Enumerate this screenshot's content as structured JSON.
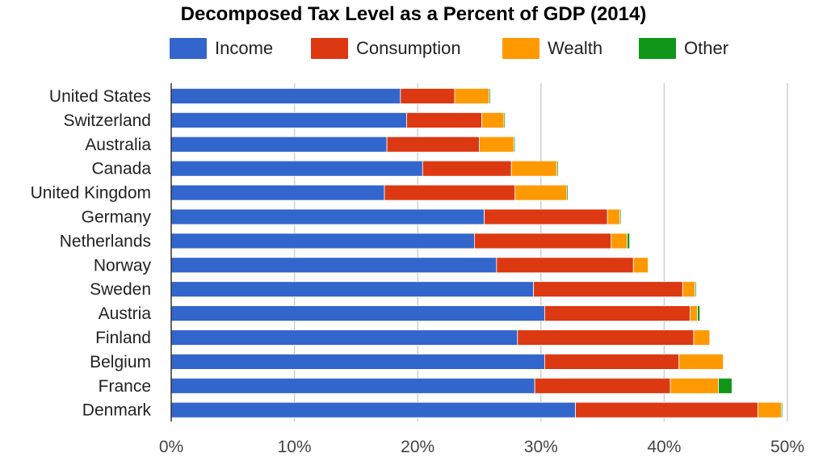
{
  "chart_data": {
    "type": "bar",
    "orientation": "horizontal",
    "stacked": true,
    "title": "Decomposed Tax Level as a Percent of GDP (2014)",
    "xlabel": "",
    "ylabel": "",
    "xlim": [
      0,
      50
    ],
    "ticks": [
      0,
      10,
      20,
      30,
      40,
      50
    ],
    "tick_labels": [
      "0%",
      "10%",
      "20%",
      "30%",
      "40%",
      "50%"
    ],
    "grid": true,
    "legend_position": "top",
    "categories": [
      "United States",
      "Switzerland",
      "Australia",
      "Canada",
      "United Kingdom",
      "Germany",
      "Netherlands",
      "Norway",
      "Sweden",
      "Austria",
      "Finland",
      "Belgium",
      "France",
      "Denmark"
    ],
    "series": [
      {
        "name": "Income",
        "color": "#3366cc",
        "values": [
          18.6,
          19.1,
          17.5,
          20.4,
          17.3,
          25.4,
          24.6,
          26.4,
          29.4,
          30.3,
          28.1,
          30.3,
          29.5,
          32.8
        ]
      },
      {
        "name": "Consumption",
        "color": "#dc3912",
        "values": [
          4.4,
          6.1,
          7.5,
          7.2,
          10.6,
          10.0,
          11.1,
          11.1,
          12.1,
          11.8,
          14.3,
          10.9,
          11.0,
          14.8
        ]
      },
      {
        "name": "Wealth",
        "color": "#ff9900",
        "values": [
          2.8,
          1.8,
          2.8,
          3.7,
          4.2,
          1.0,
          1.3,
          1.2,
          1.0,
          0.6,
          1.3,
          3.6,
          3.9,
          1.9
        ]
      },
      {
        "name": "Other",
        "color": "#109618",
        "values": [
          0.1,
          0.1,
          0.1,
          0.1,
          0.1,
          0.1,
          0.2,
          0.0,
          0.1,
          0.2,
          0.0,
          0.0,
          1.1,
          0.1
        ]
      }
    ]
  }
}
